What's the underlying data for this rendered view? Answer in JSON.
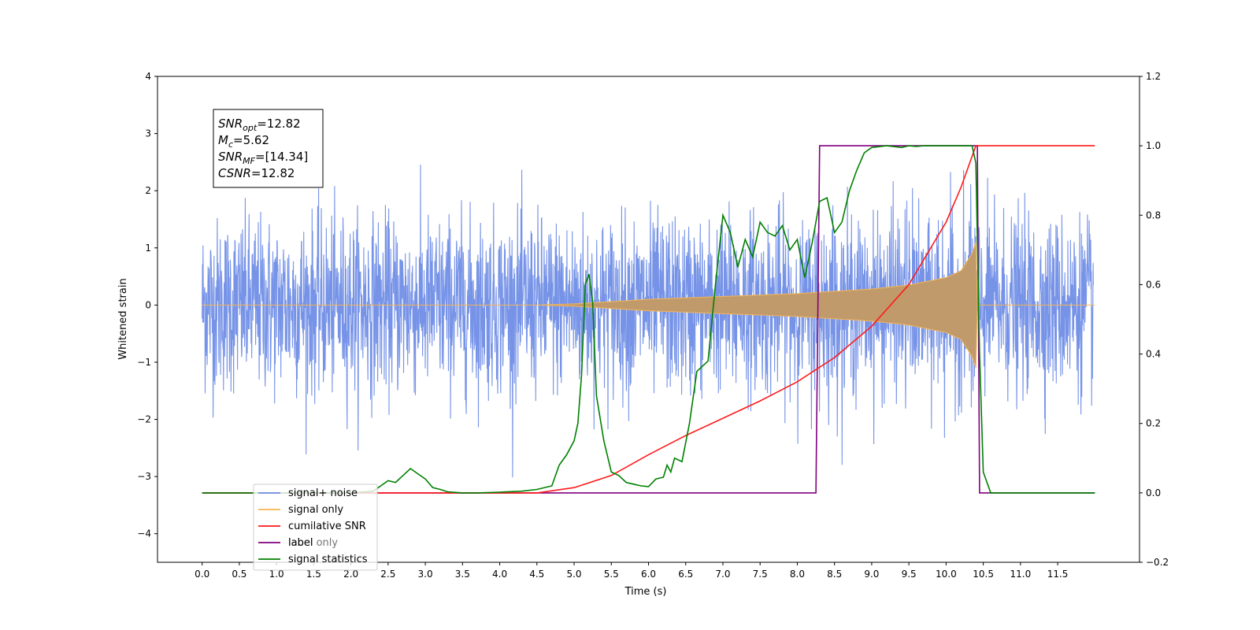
{
  "chart_data": {
    "type": "line",
    "xlabel": "Time (s)",
    "ylabel_left": "Whitened strain",
    "xlim": [
      -0.6,
      12.6
    ],
    "ylim_left": [
      -4.5,
      4.0
    ],
    "ylim_right": [
      -0.2,
      1.2
    ],
    "x_ticks": [
      0.0,
      0.5,
      1.0,
      1.5,
      2.0,
      2.5,
      3.0,
      3.5,
      4.0,
      4.5,
      5.0,
      5.5,
      6.0,
      6.5,
      7.0,
      7.5,
      8.0,
      8.5,
      9.0,
      9.5,
      10.0,
      10.5,
      11.0,
      11.5
    ],
    "x_tick_labels": [
      "0.0",
      "0.5",
      "1.0",
      "1.5",
      "2.0",
      "2.5",
      "3.0",
      "3.5",
      "4.0",
      "4.5",
      "5.0",
      "5.5",
      "6.0",
      "6.5",
      "7.0",
      "7.5",
      "8.0",
      "8.5",
      "9.0",
      "9.5",
      "10.0",
      "10.5",
      "11.0",
      "11.5"
    ],
    "y_ticks_left": [
      -4,
      -3,
      -2,
      -1,
      0,
      1,
      2,
      3,
      4
    ],
    "y_tick_labels_left": [
      "−4",
      "−3",
      "−2",
      "−1",
      "0",
      "1",
      "2",
      "3",
      "4"
    ],
    "y_ticks_right": [
      -0.2,
      0.0,
      0.2,
      0.4,
      0.6,
      0.8,
      1.0,
      1.2
    ],
    "y_tick_labels_right": [
      "−0.2",
      "0.0",
      "0.2",
      "0.4",
      "0.6",
      "0.8",
      "1.0",
      "1.2"
    ],
    "grid": false,
    "legend_placement": "lower-left",
    "annotation": {
      "lines": [
        {
          "main": "SNR",
          "sub": "opt",
          "rest": "=12.82"
        },
        {
          "main": "M",
          "sub": "c",
          "rest": "=5.62"
        },
        {
          "main": "SNR",
          "sub": "MF",
          "rest": "=[14.34]"
        },
        {
          "main": "CSNR",
          "sub": "",
          "rest": "=12.82"
        }
      ]
    },
    "series": [
      {
        "name": "signal+ noise",
        "axis": "left",
        "color": "#6f8de6",
        "description_free": true,
        "noise_std": 0.75,
        "x_start": 0.0,
        "x_end": 11.98
      },
      {
        "name": "signal only",
        "axis": "left",
        "color": "#f5b556",
        "envelope": {
          "x": [
            0.0,
            4.5,
            5.0,
            6.0,
            7.0,
            8.0,
            9.0,
            9.5,
            10.0,
            10.2,
            10.35,
            10.4,
            10.41,
            12.0
          ],
          "amp": [
            0.0,
            0.0,
            0.02,
            0.1,
            0.15,
            0.2,
            0.28,
            0.35,
            0.48,
            0.6,
            0.9,
            1.1,
            0.0,
            0.0
          ]
        }
      },
      {
        "name": "cumilative SNR",
        "axis": "right",
        "color": "#ff1a1a",
        "x": [
          0.0,
          4.5,
          5.0,
          5.5,
          6.0,
          6.5,
          7.0,
          7.5,
          8.0,
          8.5,
          9.0,
          9.5,
          10.0,
          10.2,
          10.4,
          12.0
        ],
        "y": [
          0.0,
          0.0,
          0.015,
          0.05,
          0.11,
          0.165,
          0.215,
          0.265,
          0.32,
          0.39,
          0.48,
          0.6,
          0.78,
          0.88,
          1.0,
          1.0
        ]
      },
      {
        "name": "label",
        "axis": "right",
        "color": "#800080",
        "x": [
          0.0,
          8.25,
          8.3,
          10.42,
          10.45,
          12.0
        ],
        "y": [
          0.0,
          0.0,
          1.0,
          1.0,
          0.0,
          0.0
        ]
      },
      {
        "name": "label only",
        "axis": "right",
        "color": "#800080",
        "hidden_behind_legend": true
      },
      {
        "name": "signal statistics",
        "axis": "right",
        "color": "#008000",
        "x": [
          0.0,
          2.0,
          2.3,
          2.4,
          2.5,
          2.6,
          2.7,
          2.8,
          2.9,
          3.0,
          3.1,
          3.2,
          3.3,
          3.5,
          3.7,
          4.0,
          4.3,
          4.5,
          4.7,
          4.8,
          4.9,
          5.0,
          5.05,
          5.1,
          5.15,
          5.2,
          5.25,
          5.3,
          5.4,
          5.5,
          5.6,
          5.7,
          5.8,
          5.9,
          6.0,
          6.1,
          6.2,
          6.25,
          6.3,
          6.35,
          6.45,
          6.55,
          6.65,
          6.8,
          6.9,
          7.0,
          7.1,
          7.2,
          7.3,
          7.4,
          7.5,
          7.6,
          7.7,
          7.8,
          7.9,
          8.0,
          8.1,
          8.2,
          8.3,
          8.4,
          8.5,
          8.6,
          8.7,
          8.8,
          8.9,
          9.0,
          9.2,
          9.4,
          9.5,
          9.6,
          9.7,
          9.8,
          10.0,
          10.2,
          10.35,
          10.4,
          10.45,
          10.5,
          10.6,
          10.7,
          12.0
        ],
        "y": [
          0.0,
          0.0,
          0.005,
          0.02,
          0.035,
          0.03,
          0.05,
          0.07,
          0.055,
          0.04,
          0.015,
          0.01,
          0.003,
          0.0,
          0.0,
          0.002,
          0.005,
          0.01,
          0.02,
          0.08,
          0.11,
          0.15,
          0.2,
          0.34,
          0.6,
          0.63,
          0.55,
          0.28,
          0.15,
          0.06,
          0.05,
          0.03,
          0.025,
          0.02,
          0.018,
          0.04,
          0.045,
          0.08,
          0.06,
          0.1,
          0.09,
          0.2,
          0.35,
          0.38,
          0.6,
          0.8,
          0.75,
          0.65,
          0.73,
          0.68,
          0.78,
          0.75,
          0.74,
          0.77,
          0.7,
          0.73,
          0.62,
          0.72,
          0.84,
          0.85,
          0.75,
          0.78,
          0.87,
          0.93,
          0.98,
          0.995,
          1.0,
          0.995,
          1.0,
          0.998,
          1.0,
          1.0,
          1.0,
          1.0,
          1.0,
          0.95,
          0.4,
          0.06,
          0.0,
          0.0,
          0.0
        ]
      }
    ]
  }
}
